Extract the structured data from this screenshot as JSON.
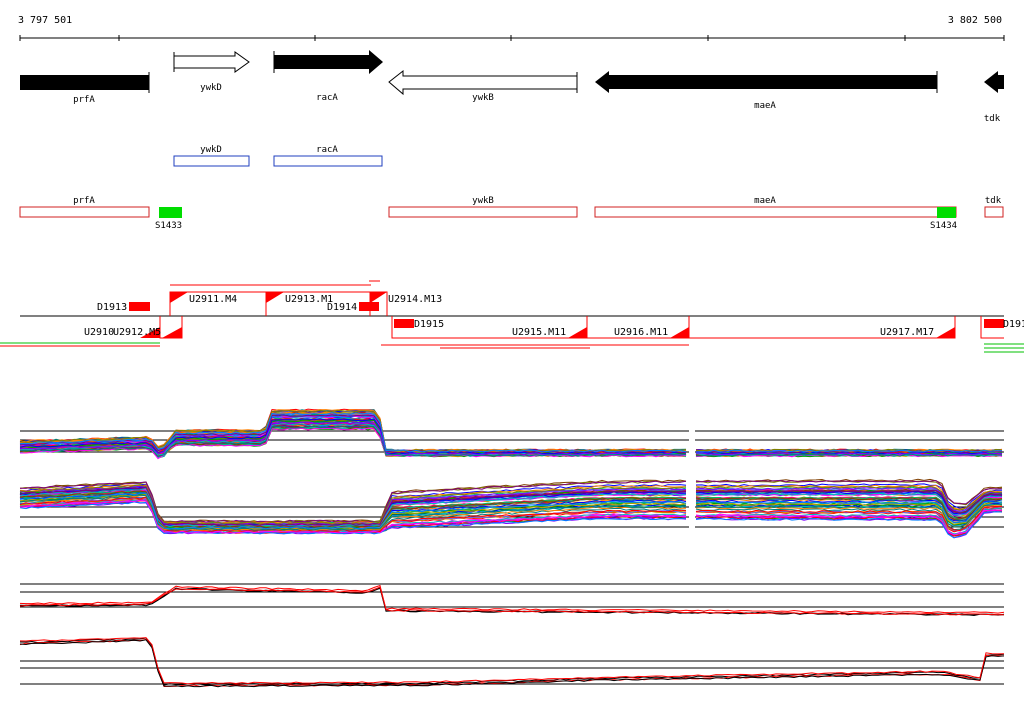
{
  "coords": {
    "start": "3 797 501",
    "end": "3 802 500"
  },
  "genes": [
    {
      "label": "prfA",
      "strand": "-",
      "fill": "#000000",
      "partial": "left"
    },
    {
      "label": "ywkD",
      "strand": "+",
      "fill": "#ffffff"
    },
    {
      "label": "racA",
      "strand": "+",
      "fill": "#000000"
    },
    {
      "label": "ywkB",
      "strand": "-",
      "fill": "#ffffff"
    },
    {
      "label": "maeA",
      "strand": "-",
      "fill": "#000000"
    },
    {
      "label": "tdk",
      "strand": "-",
      "fill": "#000000",
      "partial": "right"
    }
  ],
  "forward_transcripts": [
    "ywkD",
    "racA"
  ],
  "reverse_transcripts": [
    "prfA",
    "ywkB",
    "maeA",
    "tdk"
  ],
  "sites": [
    "S1433",
    "S1434"
  ],
  "features_top": [
    "D1913",
    "U2911.M4",
    "U2913.M1",
    "D1914",
    "U2914.M13"
  ],
  "features_bottom": [
    "U2910",
    "U2912.M5",
    "D1915",
    "U2915.M11",
    "U2916.M11",
    "U2917.M17",
    "D191"
  ],
  "colors": {
    "gene_fill": "#000000",
    "forward_box": "#1f3fbf",
    "reverse_box": "#d02020",
    "site": "#00dd00",
    "feature": "#ff0000",
    "axis": "#000000"
  }
}
